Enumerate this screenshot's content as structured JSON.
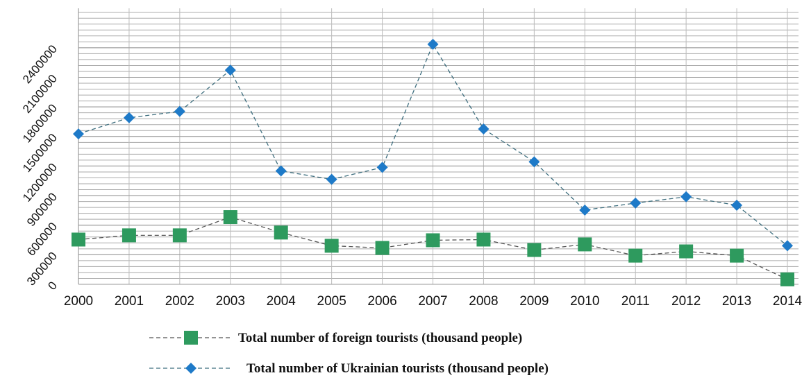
{
  "chart_data": {
    "type": "line",
    "categories": [
      "2000",
      "2001",
      "2002",
      "2003",
      "2004",
      "2005",
      "2006",
      "2007",
      "2008",
      "2009",
      "2010",
      "2011",
      "2012",
      "2013",
      "2014"
    ],
    "series": [
      {
        "name": "Total number of foreign tourists (thousand people)",
        "color": "#2e9a5e",
        "line_color": "#555555",
        "marker": "square",
        "values": [
          454000,
          497000,
          497000,
          682000,
          525000,
          391000,
          369000,
          447000,
          454000,
          348000,
          405000,
          291000,
          334000,
          291000,
          50000
        ]
      },
      {
        "name": "Total number of Ukrainian tourists (thousand people)",
        "color": "#1e7ac8",
        "line_color": "#3f6f7f",
        "marker": "diamond",
        "values": [
          1526000,
          1690000,
          1754000,
          2173000,
          1150000,
          1065000,
          1186000,
          2435000,
          1576000,
          1243000,
          753000,
          824000,
          888000,
          802000,
          391000
        ]
      }
    ],
    "ylim": [
      0,
      2800000
    ],
    "yticks": [
      0,
      300000,
      600000,
      900000,
      1200000,
      1500000,
      1800000,
      2100000,
      2400000
    ],
    "grid": true,
    "minor_grid_per_tick": 5,
    "legend": "bottom"
  }
}
